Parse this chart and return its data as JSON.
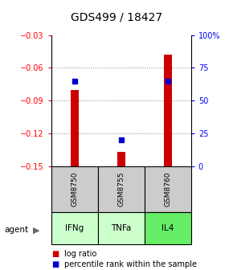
{
  "title": "GDS499 / 18427",
  "samples": [
    "GSM8750",
    "GSM8755",
    "GSM8760"
  ],
  "agents": [
    "IFNg",
    "TNFa",
    "IL4"
  ],
  "agent_colors": [
    "#ccffcc",
    "#ccffcc",
    "#66ee66"
  ],
  "log_ratios": [
    -0.08,
    -0.137,
    -0.048
  ],
  "percentile_ranks": [
    65,
    20,
    65
  ],
  "ylim_left": [
    -0.15,
    -0.03
  ],
  "ylim_right": [
    0,
    100
  ],
  "yticks_left": [
    -0.15,
    -0.12,
    -0.09,
    -0.06,
    -0.03
  ],
  "yticks_right": [
    0,
    25,
    50,
    75,
    100
  ],
  "bar_color": "#cc0000",
  "pct_color": "#0000cc",
  "sample_bg_color": "#cccccc",
  "grid_color": "#888888",
  "title_fontsize": 10,
  "tick_fontsize": 7,
  "legend_fontsize": 7
}
